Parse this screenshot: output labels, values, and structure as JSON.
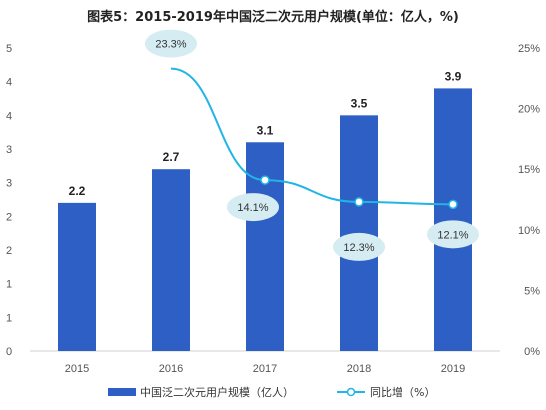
{
  "chart_data": {
    "type": "bar",
    "title": "图表5：2015-2019年中国泛二次元用户规模(单位：亿人，%)",
    "categories": [
      "2015",
      "2016",
      "2017",
      "2018",
      "2019"
    ],
    "series": [
      {
        "name": "中国泛二次元用户规模（亿人）",
        "type": "bar",
        "axis": "left",
        "values": [
          2.2,
          2.7,
          3.1,
          3.5,
          3.9
        ],
        "labels": [
          "2.2",
          "2.7",
          "3.1",
          "3.5",
          "3.9"
        ],
        "color": "#2e5fc4"
      },
      {
        "name": "同比增（%）",
        "type": "line",
        "axis": "right",
        "values": [
          null,
          23.3,
          14.1,
          12.3,
          12.1
        ],
        "labels": [
          "",
          "23.3%",
          "14.1%",
          "12.3%",
          "12.1%"
        ],
        "color": "#1fb6e6"
      }
    ],
    "y_left": {
      "ylim": [
        0,
        4.5
      ],
      "ticks": [
        "0",
        "1",
        "1",
        "2",
        "2",
        "3",
        "3",
        "4",
        "4",
        "5"
      ]
    },
    "y_right": {
      "ylim": [
        0,
        25
      ],
      "ticks": [
        "0%",
        "5%",
        "10%",
        "15%",
        "20%",
        "25%"
      ]
    },
    "grid": false,
    "legend_position": "bottom",
    "label_bubble_color": "#d6ecf3"
  }
}
